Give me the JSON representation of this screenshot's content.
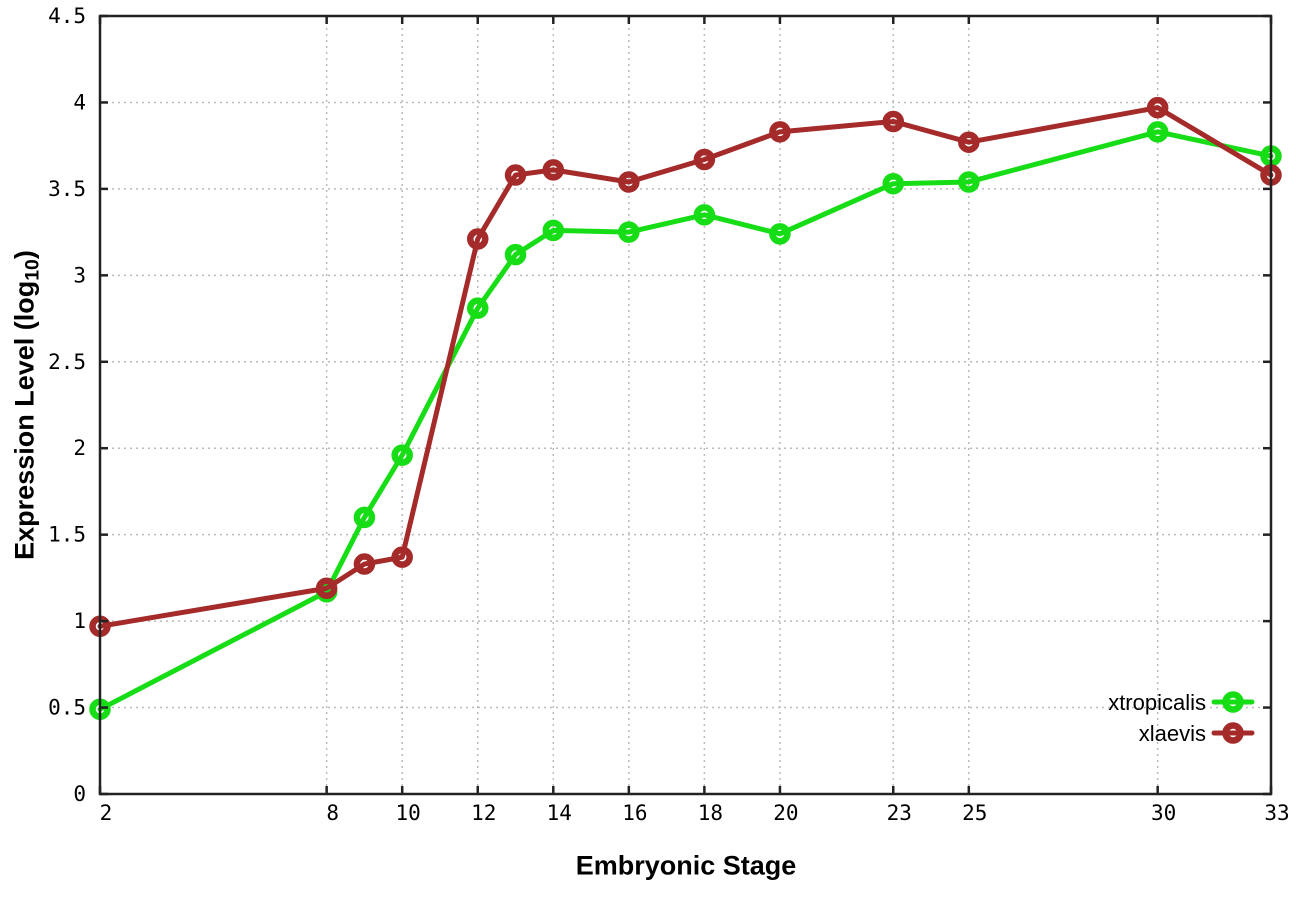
{
  "figure": {
    "xlabel": "Embryonic Stage",
    "ylabel": {
      "pre": "Expression Level (log",
      "sub": "10",
      "post": ")"
    }
  },
  "chart_data": {
    "type": "line",
    "title": "",
    "xlabel": "Embryonic Stage",
    "ylabel": "Expression Level (log10)",
    "x": [
      2,
      8,
      9,
      10,
      12,
      13,
      14,
      16,
      18,
      20,
      23,
      25,
      30,
      33
    ],
    "series": [
      {
        "name": "xtropicalis",
        "color": "#17dd17",
        "values": [
          0.49,
          1.17,
          1.6,
          1.96,
          2.81,
          3.12,
          3.26,
          3.25,
          3.35,
          3.24,
          3.53,
          3.54,
          3.83,
          3.69
        ]
      },
      {
        "name": "xlaevis",
        "color": "#a52a2a",
        "values": [
          0.97,
          1.19,
          1.33,
          1.37,
          3.21,
          3.58,
          3.61,
          3.54,
          3.67,
          3.83,
          3.89,
          3.77,
          3.97,
          3.58
        ]
      }
    ],
    "xticks": {
      "values": [
        2,
        8,
        10,
        12,
        14,
        16,
        18,
        20,
        23,
        25,
        30,
        33
      ],
      "labels": [
        "2",
        "8",
        "10",
        "12",
        "14",
        "16",
        "18",
        "20",
        "23",
        "25",
        "30",
        "33"
      ]
    },
    "yticks": {
      "values": [
        0,
        0.5,
        1,
        1.5,
        2,
        2.5,
        3,
        3.5,
        4,
        4.5
      ],
      "labels": [
        "0",
        "0.5",
        "1",
        "1.5",
        "2",
        "2.5",
        "3",
        "3.5",
        "4",
        "4.5"
      ]
    },
    "xlim": [
      2,
      33
    ],
    "ylim": [
      0,
      4.5
    ],
    "grid": true,
    "legend_position": "bottom-right",
    "colors": {
      "border": "#222222",
      "grid": "#bbbbbb",
      "tick_text": "#000000",
      "background": "#ffffff"
    }
  }
}
